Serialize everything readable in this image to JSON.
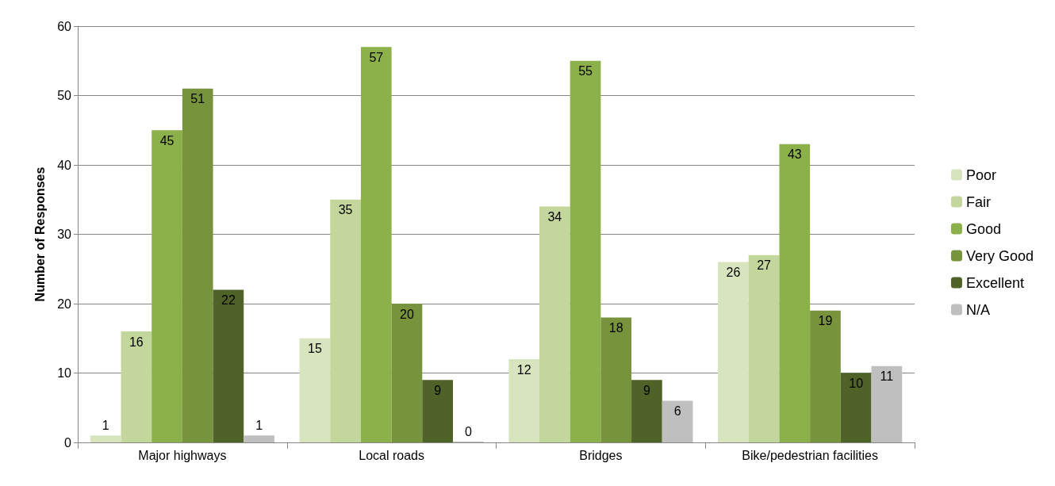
{
  "chart_data": {
    "type": "bar",
    "ylabel": "Number of Responses",
    "categories": [
      "Major highways",
      "Local roads",
      "Bridges",
      "Bike/pedestrian facilities"
    ],
    "series": [
      {
        "name": "Poor",
        "color": "#d7e4bd",
        "values": [
          1,
          15,
          12,
          26
        ]
      },
      {
        "name": "Fair",
        "color": "#c3d69b",
        "values": [
          16,
          35,
          34,
          27
        ]
      },
      {
        "name": "Good",
        "color": "#8cb04a",
        "values": [
          45,
          57,
          55,
          43
        ]
      },
      {
        "name": "Very Good",
        "color": "#77933c",
        "values": [
          51,
          20,
          18,
          19
        ]
      },
      {
        "name": "Excellent",
        "color": "#4f6228",
        "values": [
          22,
          9,
          9,
          10
        ]
      },
      {
        "name": "N/A",
        "color": "#bfbfbf",
        "values": [
          1,
          0,
          6,
          11
        ]
      }
    ],
    "ylim": [
      0,
      60
    ],
    "yticks": [
      0,
      10,
      20,
      30,
      40,
      50,
      60
    ],
    "grid": "y",
    "legend": "right",
    "data_labels": true
  }
}
